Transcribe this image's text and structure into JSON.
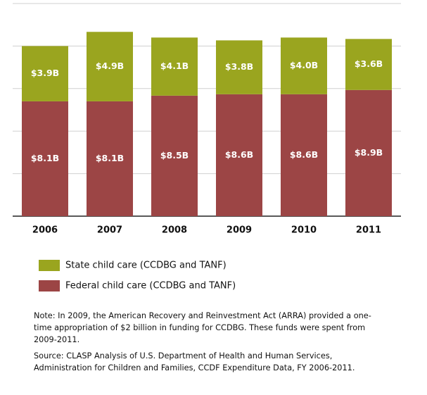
{
  "chart_data": {
    "type": "stacked-bar",
    "categories": [
      "2006",
      "2007",
      "2008",
      "2009",
      "2010",
      "2011"
    ],
    "series": [
      {
        "name": "Federal child care (CCDBG and TANF)",
        "color": "#9c4545",
        "values": [
          8.1,
          8.1,
          8.5,
          8.6,
          8.6,
          8.9
        ],
        "value_labels": [
          "$8.1B",
          "$8.1B",
          "$8.5B",
          "$8.6B",
          "$8.6B",
          "$8.9B"
        ]
      },
      {
        "name": "State child care (CCDBG and TANF)",
        "color": "#9aa51f",
        "values": [
          3.9,
          4.9,
          4.1,
          3.8,
          4.0,
          3.6
        ],
        "value_labels": [
          "$3.9B",
          "$4.9B",
          "$4.1B",
          "$3.8B",
          "$4.0B",
          "$3.6B"
        ]
      }
    ],
    "ylim": [
      0,
      15
    ],
    "yticks": [
      0,
      3,
      6,
      9,
      12,
      15
    ],
    "grid": true,
    "note": "Note: In 2009, the American Recovery and Reinvestment Act (ARRA) provided a one-time appropriation of $2 billion in funding for CCDBG. These funds were spent from 2009-2011.",
    "source": "Source: CLASP Analysis of U.S. Department of Health and Human Services, Administration for Children and Families, CCDF Expenditure Data, FY 2006-2011."
  }
}
